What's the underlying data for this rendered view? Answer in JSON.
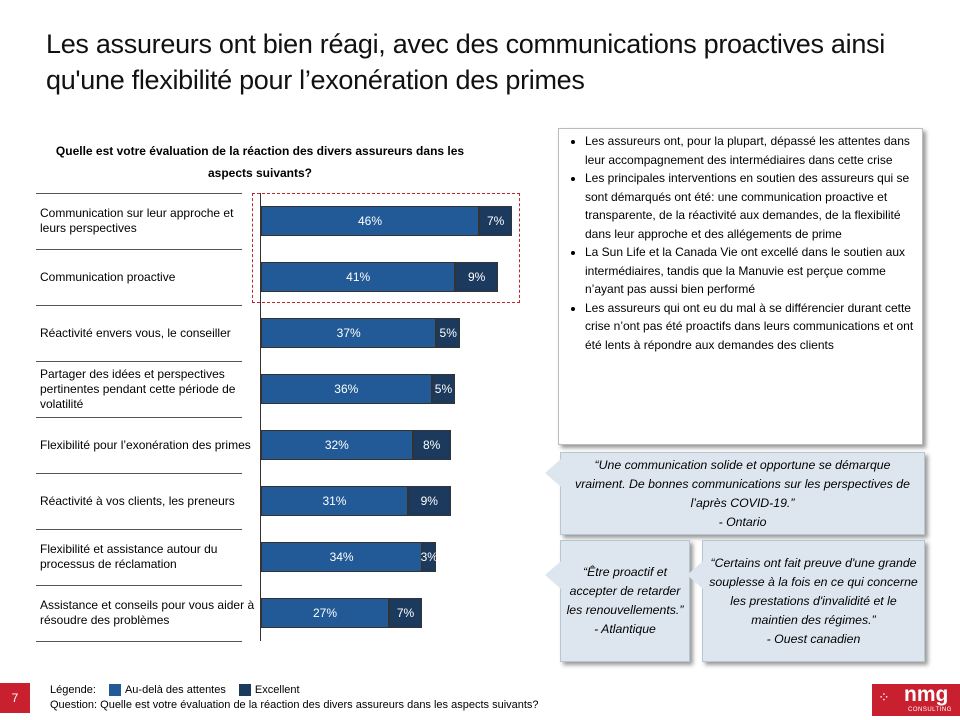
{
  "title": "Les assureurs ont bien réagi, avec des communications proactives ainsi qu'une flexibilité pour l’exonération des primes",
  "chart_question": "Quelle est votre évaluation de la réaction des divers assureurs dans les aspects suivants?",
  "chart_data": {
    "type": "bar",
    "orientation": "horizontal-stacked",
    "categories": [
      "Communication sur leur approche et leurs perspectives",
      "Communication proactive",
      "Réactivité envers vous, le conseiller",
      "Partager des idées et perspectives pertinentes pendant cette période de volatilité",
      "Flexibilité pour l’exonération des primes",
      "Réactivité à vos clients, les preneurs",
      "Flexibilité et assistance autour du processus de réclamation",
      "Assistance et conseils pour vous aider à résoudre des problèmes"
    ],
    "series": [
      {
        "name": "Au-delà des attentes",
        "color": "#215a96",
        "values": [
          46,
          41,
          37,
          36,
          32,
          31,
          34,
          27
        ]
      },
      {
        "name": "Excellent",
        "color": "#1b3a5e",
        "values": [
          7,
          9,
          5,
          5,
          8,
          9,
          3,
          7
        ]
      }
    ],
    "unit": "%"
  },
  "bullets": [
    "Les assureurs ont, pour la plupart, dépassé les attentes dans leur accompagnement des intermédiaires dans cette crise",
    "Les principales interventions en soutien des assureurs qui se sont démarqués ont été: une communication proactive et transparente, de la réactivité aux demandes, de la flexibilité dans leur approche et des allégements de prime",
    "La Sun Life et la Canada Vie ont excellé dans le soutien aux intermédiaires, tandis que la Manuvie est perçue comme n’ayant pas aussi bien performé",
    "Les assureurs qui ont eu du mal à se différencier durant cette crise n’ont pas été proactifs dans leurs communications et ont été lents à répondre aux demandes des clients"
  ],
  "quotes": [
    {
      "text": "“Une communication solide et opportune se démarque vraiment. De bonnes communications sur les perspectives de l’après COVID-19.”",
      "source": "- Ontario"
    },
    {
      "text": "“Être proactif et accepter de retarder les renouvellements.”",
      "source": "- Atlantique"
    },
    {
      "text": "“Certains ont fait preuve d'une grande souplesse à la fois en ce qui concerne les prestations d'invalidité et le maintien des régimes.”",
      "source": "- Ouest canadien"
    }
  ],
  "footer": {
    "legend_label": "Légende:",
    "legend_1": "Au-delà des attentes",
    "legend_2": "Excellent",
    "question": "Question: Quelle est votre évaluation de la réaction des divers assureurs dans les aspects suivants?"
  },
  "page_number": "7",
  "logo": {
    "name": "nmg",
    "sub": "CONSULTING"
  }
}
